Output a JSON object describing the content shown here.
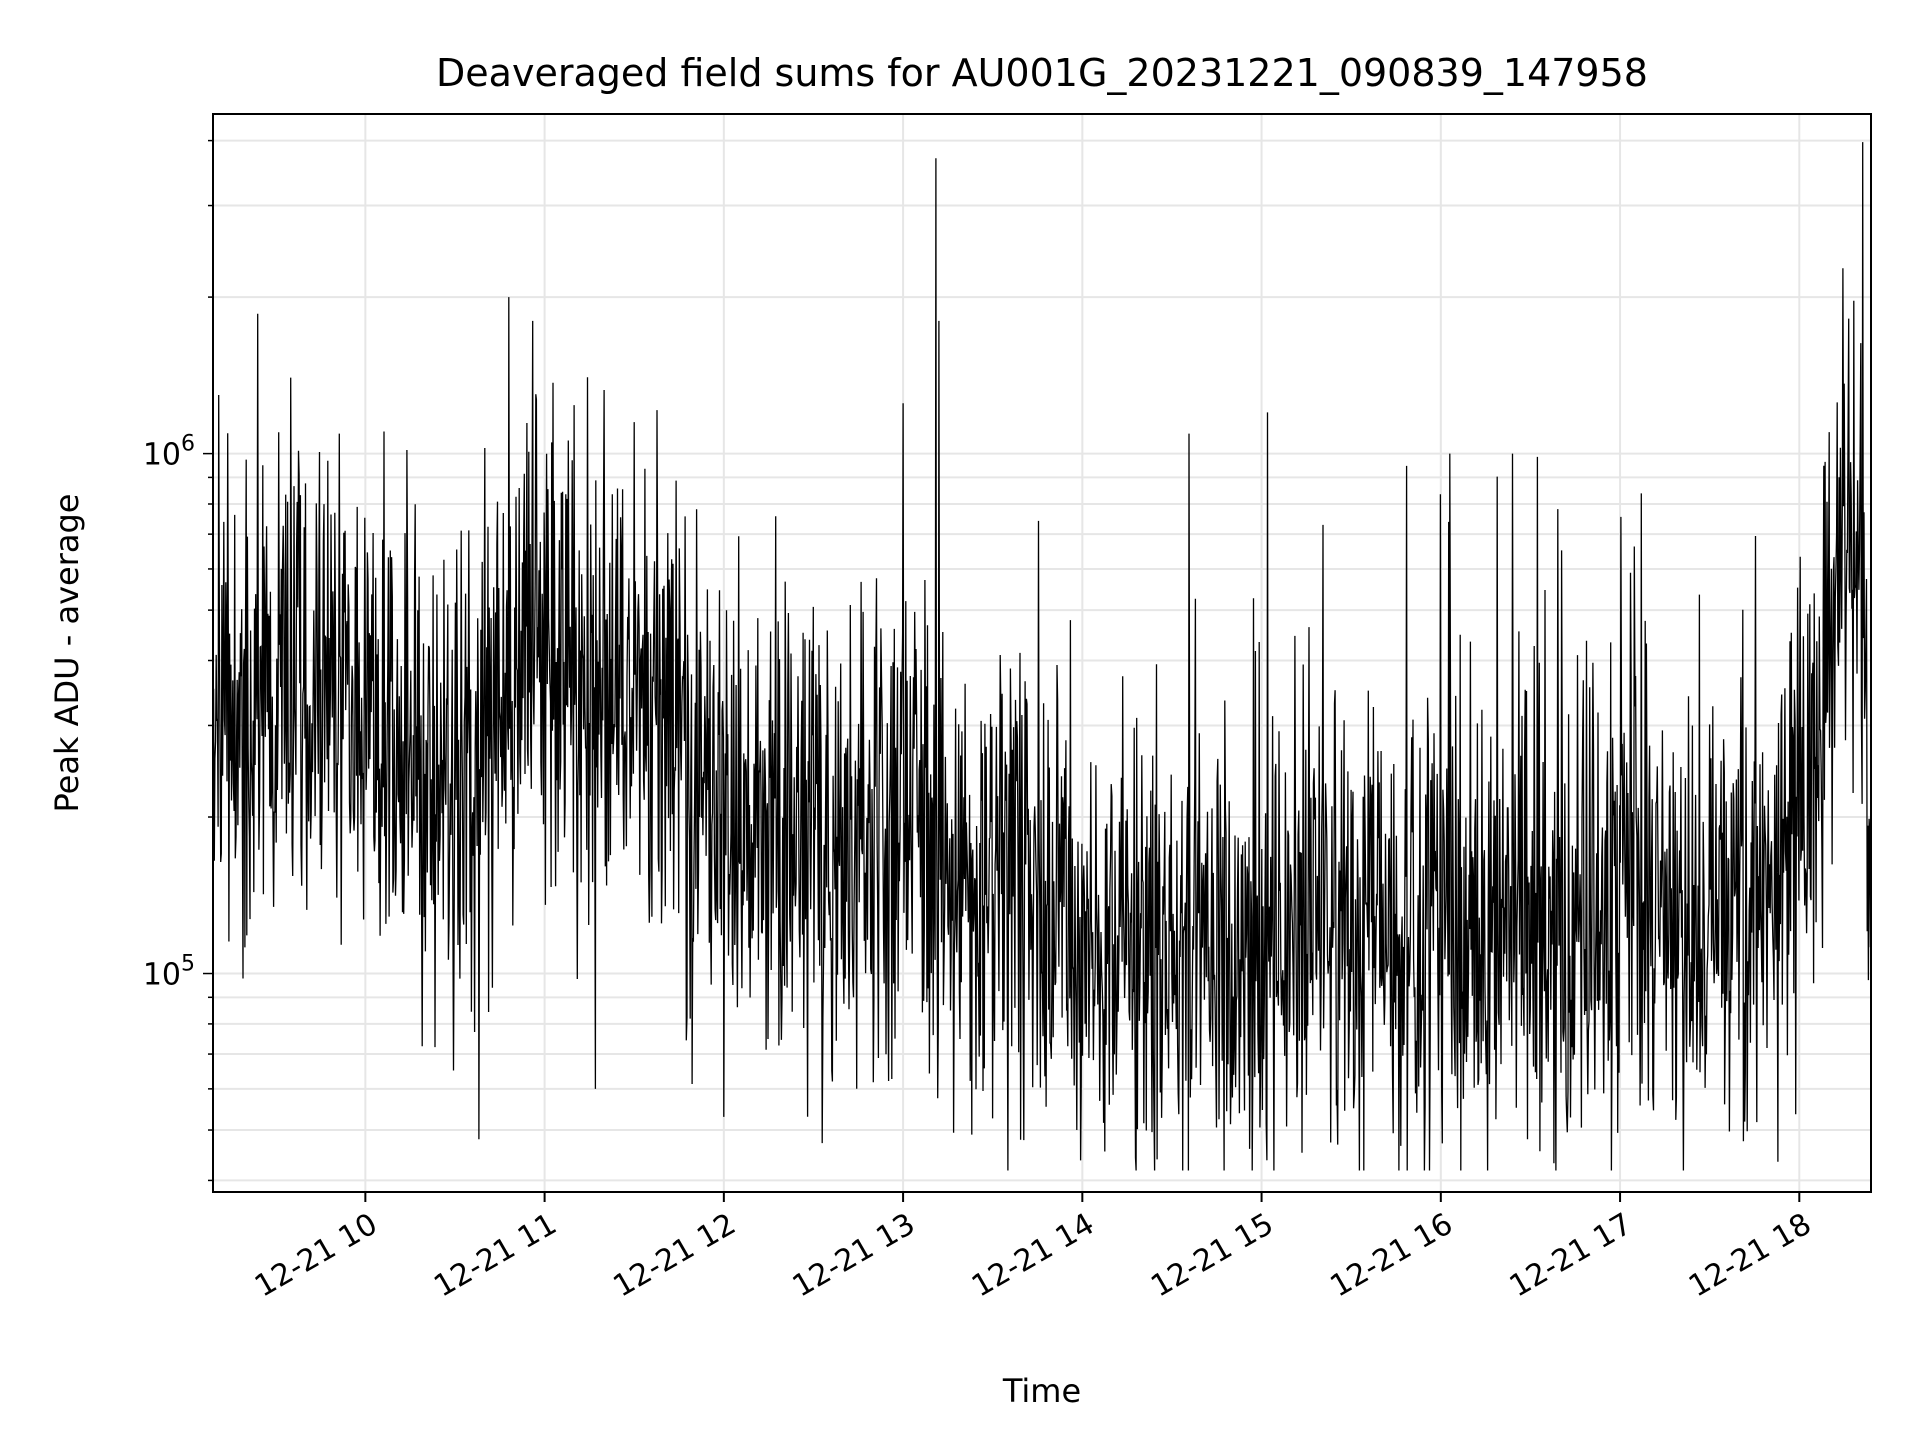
{
  "chart_data": {
    "type": "line",
    "title": "Deaveraged field sums for AU001G_20231221_090839_147958",
    "xlabel": "Time",
    "ylabel": "Peak ADU - average",
    "y_scale": "log",
    "ylim": [
      38000,
      4500000
    ],
    "xlim": [
      "2023-12-21 09:09",
      "2023-12-21 18:24"
    ],
    "x_tick_labels": [
      "12-21 10",
      "12-21 11",
      "12-21 12",
      "12-21 13",
      "12-21 14",
      "12-21 15",
      "12-21 16",
      "12-21 17",
      "12-21 18"
    ],
    "x_ticks": [
      "2023-12-21 10:00",
      "2023-12-21 11:00",
      "2023-12-21 12:00",
      "2023-12-21 13:00",
      "2023-12-21 14:00",
      "2023-12-21 15:00",
      "2023-12-21 16:00",
      "2023-12-21 17:00",
      "2023-12-21 18:00"
    ],
    "y_tick_labels": [
      {
        "base": "10",
        "exp": "5",
        "value": 100000
      },
      {
        "base": "10",
        "exp": "6",
        "value": 1000000
      }
    ],
    "grid": true,
    "line_color": "#000000",
    "grid_color": "#e6e6e6",
    "series": [
      {
        "x": [
          "2023-12-21 09:09",
          "2023-12-21 09:20",
          "2023-12-21 09:30",
          "2023-12-21 09:40",
          "2023-12-21 09:50",
          "2023-12-21 10:00",
          "2023-12-21 10:10",
          "2023-12-21 10:20",
          "2023-12-21 10:30",
          "2023-12-21 10:40",
          "2023-12-21 10:50",
          "2023-12-21 11:00",
          "2023-12-21 11:10",
          "2023-12-21 11:20",
          "2023-12-21 11:30",
          "2023-12-21 11:40",
          "2023-12-21 11:50",
          "2023-12-21 12:00",
          "2023-12-21 12:10",
          "2023-12-21 12:20",
          "2023-12-21 12:30",
          "2023-12-21 12:40",
          "2023-12-21 12:50",
          "2023-12-21 13:00",
          "2023-12-21 13:10",
          "2023-12-21 13:20",
          "2023-12-21 13:30",
          "2023-12-21 13:40",
          "2023-12-21 13:50",
          "2023-12-21 14:00",
          "2023-12-21 14:10",
          "2023-12-21 14:20",
          "2023-12-21 14:30",
          "2023-12-21 14:40",
          "2023-12-21 14:50",
          "2023-12-21 15:00",
          "2023-12-21 15:10",
          "2023-12-21 15:20",
          "2023-12-21 15:30",
          "2023-12-21 15:40",
          "2023-12-21 15:50",
          "2023-12-21 16:00",
          "2023-12-21 16:10",
          "2023-12-21 16:20",
          "2023-12-21 16:30",
          "2023-12-21 16:40",
          "2023-12-21 16:50",
          "2023-12-21 17:00",
          "2023-12-21 17:10",
          "2023-12-21 17:20",
          "2023-12-21 17:30",
          "2023-12-21 17:40",
          "2023-12-21 17:50",
          "2023-12-21 18:00",
          "2023-12-21 18:10",
          "2023-12-21 18:15",
          "2023-12-21 18:20",
          "2023-12-21 18:24"
        ],
        "y": [
          330000,
          320000,
          300000,
          350000,
          370000,
          310000,
          270000,
          230000,
          210000,
          260000,
          380000,
          450000,
          400000,
          330000,
          380000,
          280000,
          200000,
          200000,
          190000,
          180000,
          190000,
          170000,
          200000,
          230000,
          160000,
          150000,
          140000,
          135000,
          130000,
          120000,
          115000,
          110000,
          105000,
          110000,
          115000,
          105000,
          115000,
          110000,
          115000,
          120000,
          115000,
          115000,
          120000,
          120000,
          125000,
          120000,
          125000,
          130000,
          130000,
          130000,
          135000,
          140000,
          140000,
          180000,
          350000,
          700000,
          900000,
          130000
        ]
      }
    ],
    "spikes": [
      {
        "x": "2023-12-21 09:35",
        "y": 1400000
      },
      {
        "x": "2023-12-21 10:48",
        "y": 2000000
      },
      {
        "x": "2023-12-21 10:56",
        "y": 1800000
      },
      {
        "x": "2023-12-21 11:30",
        "y": 1150000
      },
      {
        "x": "2023-12-21 13:00",
        "y": 1250000
      },
      {
        "x": "2023-12-21 13:11",
        "y": 3700000
      },
      {
        "x": "2023-12-21 13:12",
        "y": 1800000
      },
      {
        "x": "2023-12-21 15:02",
        "y": 1200000
      },
      {
        "x": "2023-12-21 16:03",
        "y": 1000000
      },
      {
        "x": "2023-12-21 16:24",
        "y": 1000000
      },
      {
        "x": "2023-12-21 18:10",
        "y": 1100000
      }
    ],
    "dips": [
      {
        "x": "2023-12-21 10:38",
        "y": 48000
      },
      {
        "x": "2023-12-21 11:17",
        "y": 60000
      },
      {
        "x": "2023-12-21 12:00",
        "y": 53000
      },
      {
        "x": "2023-12-21 13:23",
        "y": 49000
      },
      {
        "x": "2023-12-21 14:56",
        "y": 46000
      },
      {
        "x": "2023-12-21 16:29",
        "y": 48000
      },
      {
        "x": "2023-12-21 17:35",
        "y": 56000
      }
    ]
  }
}
